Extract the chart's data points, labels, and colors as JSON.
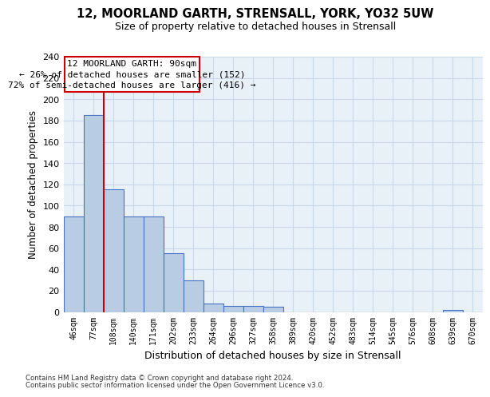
{
  "title_line1": "12, MOORLAND GARTH, STRENSALL, YORK, YO32 5UW",
  "title_line2": "Size of property relative to detached houses in Strensall",
  "xlabel": "Distribution of detached houses by size in Strensall",
  "ylabel": "Number of detached properties",
  "categories": [
    "46sqm",
    "77sqm",
    "108sqm",
    "140sqm",
    "171sqm",
    "202sqm",
    "233sqm",
    "264sqm",
    "296sqm",
    "327sqm",
    "358sqm",
    "389sqm",
    "420sqm",
    "452sqm",
    "483sqm",
    "514sqm",
    "545sqm",
    "576sqm",
    "608sqm",
    "639sqm",
    "670sqm"
  ],
  "values": [
    90,
    185,
    115,
    90,
    90,
    55,
    30,
    8,
    6,
    6,
    5,
    0,
    0,
    0,
    0,
    0,
    0,
    0,
    0,
    2,
    0
  ],
  "bar_color": "#b8cce4",
  "bar_edge_color": "#4472c4",
  "red_line_x": 1.5,
  "annotation_text_line1": "12 MOORLAND GARTH: 90sqm",
  "annotation_text_line2": "← 26% of detached houses are smaller (152)",
  "annotation_text_line3": "72% of semi-detached houses are larger (416) →",
  "annotation_box_color": "#ffffff",
  "annotation_box_edge": "#cc0000",
  "ylim": [
    0,
    240
  ],
  "yticks": [
    0,
    20,
    40,
    60,
    80,
    100,
    120,
    140,
    160,
    180,
    200,
    220,
    240
  ],
  "grid_color": "#c8d8e8",
  "bg_color": "#e8f0f8",
  "footer_line1": "Contains HM Land Registry data © Crown copyright and database right 2024.",
  "footer_line2": "Contains public sector information licensed under the Open Government Licence v3.0."
}
